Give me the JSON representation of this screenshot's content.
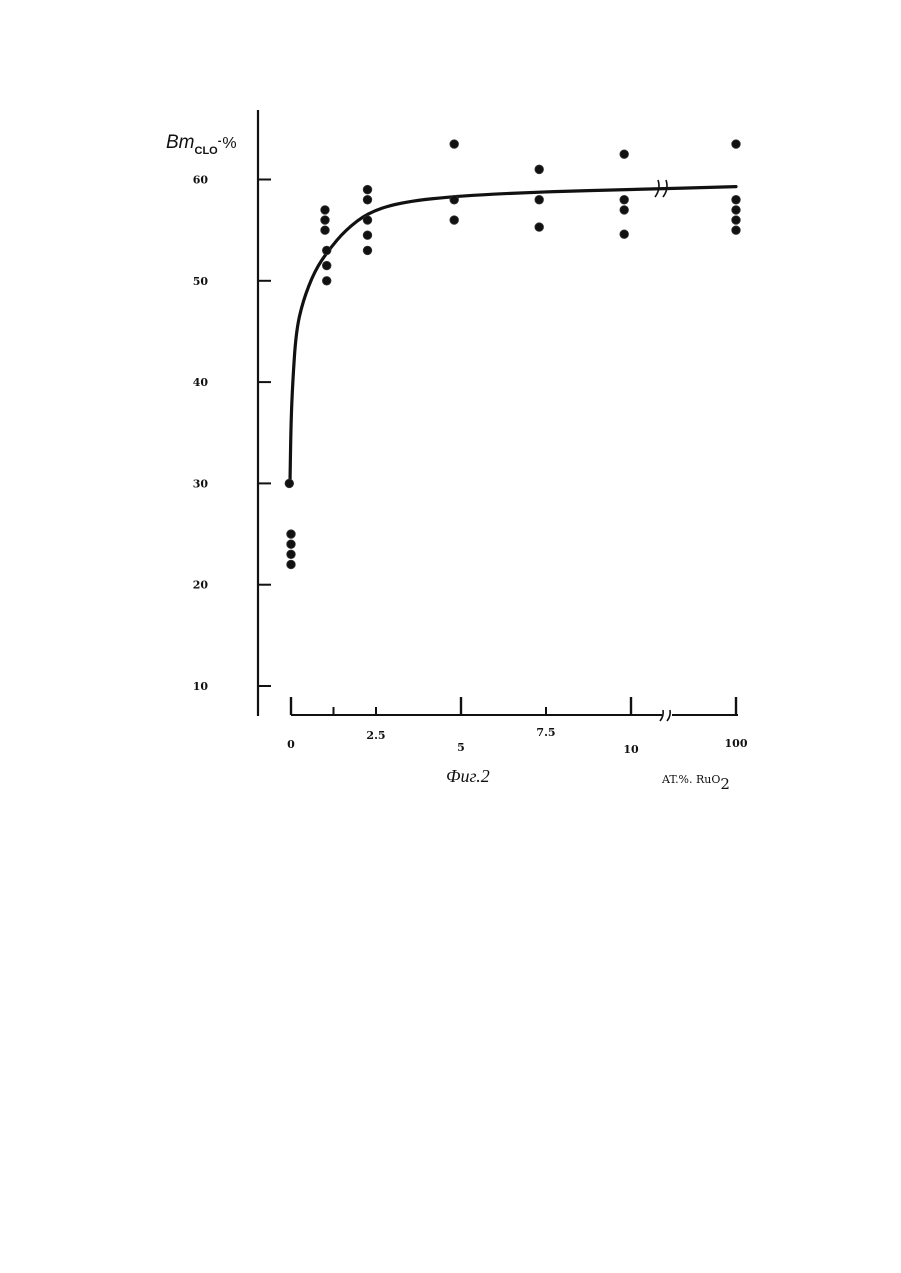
{
  "chart_data": {
    "type": "scatter",
    "ylabel_main": "Bm",
    "ylabel_sub": "CLO",
    "ylabel_charge": "-",
    "ylabel_unit": "%",
    "xlabel_prefix": "AT.%. RuO",
    "xlabel_sub": "2",
    "caption": "Фиг.2",
    "ylim": [
      7,
      67
    ],
    "y_ticks": [
      10,
      20,
      30,
      40,
      50,
      60
    ],
    "y_tick_labels": [
      "10",
      "20",
      "30",
      "40",
      "50",
      "60"
    ],
    "x_tick_positions": [
      0,
      1.25,
      2.5,
      5,
      7.5,
      10,
      100
    ],
    "x_tick_labels": [
      {
        "at": 0,
        "text": "0"
      },
      {
        "at": 2.5,
        "text": "2.5"
      },
      {
        "at": 5,
        "text": "5"
      },
      {
        "at": 7.5,
        "text": "7.5"
      },
      {
        "at": 10,
        "text": "10"
      },
      {
        "at": 100,
        "text": "100"
      }
    ],
    "axis_break": true,
    "grid": false,
    "series": [
      {
        "points": [
          {
            "x": -0.05,
            "y": 30
          },
          {
            "x": 0,
            "y": 25
          },
          {
            "x": 0,
            "y": 24
          },
          {
            "x": 0,
            "y": 23
          },
          {
            "x": 0,
            "y": 22
          },
          {
            "x": 1,
            "y": 57
          },
          {
            "x": 1,
            "y": 56
          },
          {
            "x": 1,
            "y": 55
          },
          {
            "x": 1.05,
            "y": 53
          },
          {
            "x": 1.05,
            "y": 51.5
          },
          {
            "x": 1.05,
            "y": 50
          },
          {
            "x": 2.25,
            "y": 59
          },
          {
            "x": 2.25,
            "y": 58
          },
          {
            "x": 2.25,
            "y": 56
          },
          {
            "x": 2.25,
            "y": 54.5
          },
          {
            "x": 2.25,
            "y": 53
          },
          {
            "x": 4.8,
            "y": 63.5
          },
          {
            "x": 4.8,
            "y": 58
          },
          {
            "x": 4.8,
            "y": 56
          },
          {
            "x": 7.3,
            "y": 61
          },
          {
            "x": 7.3,
            "y": 58
          },
          {
            "x": 7.3,
            "y": 55.3
          },
          {
            "x": 9.8,
            "y": 62.5
          },
          {
            "x": 9.8,
            "y": 58
          },
          {
            "x": 9.8,
            "y": 57
          },
          {
            "x": 9.8,
            "y": 54.6
          },
          {
            "x": 100,
            "y": 63.5
          },
          {
            "x": 100,
            "y": 58
          },
          {
            "x": 100,
            "y": 57
          },
          {
            "x": 100,
            "y": 56
          },
          {
            "x": 100,
            "y": 55
          }
        ]
      }
    ],
    "fit_curve": [
      {
        "x": -0.03,
        "y": 30
      },
      {
        "x": 0,
        "y": 36
      },
      {
        "x": 0.05,
        "y": 40
      },
      {
        "x": 0.15,
        "y": 45
      },
      {
        "x": 0.35,
        "y": 48
      },
      {
        "x": 0.7,
        "y": 51
      },
      {
        "x": 1.1,
        "y": 53
      },
      {
        "x": 1.6,
        "y": 55
      },
      {
        "x": 2.3,
        "y": 56.8
      },
      {
        "x": 3.3,
        "y": 57.8
      },
      {
        "x": 5,
        "y": 58.4
      },
      {
        "x": 7.5,
        "y": 58.8
      },
      {
        "x": 10,
        "y": 59
      },
      {
        "x": 100,
        "y": 59.3
      }
    ]
  }
}
